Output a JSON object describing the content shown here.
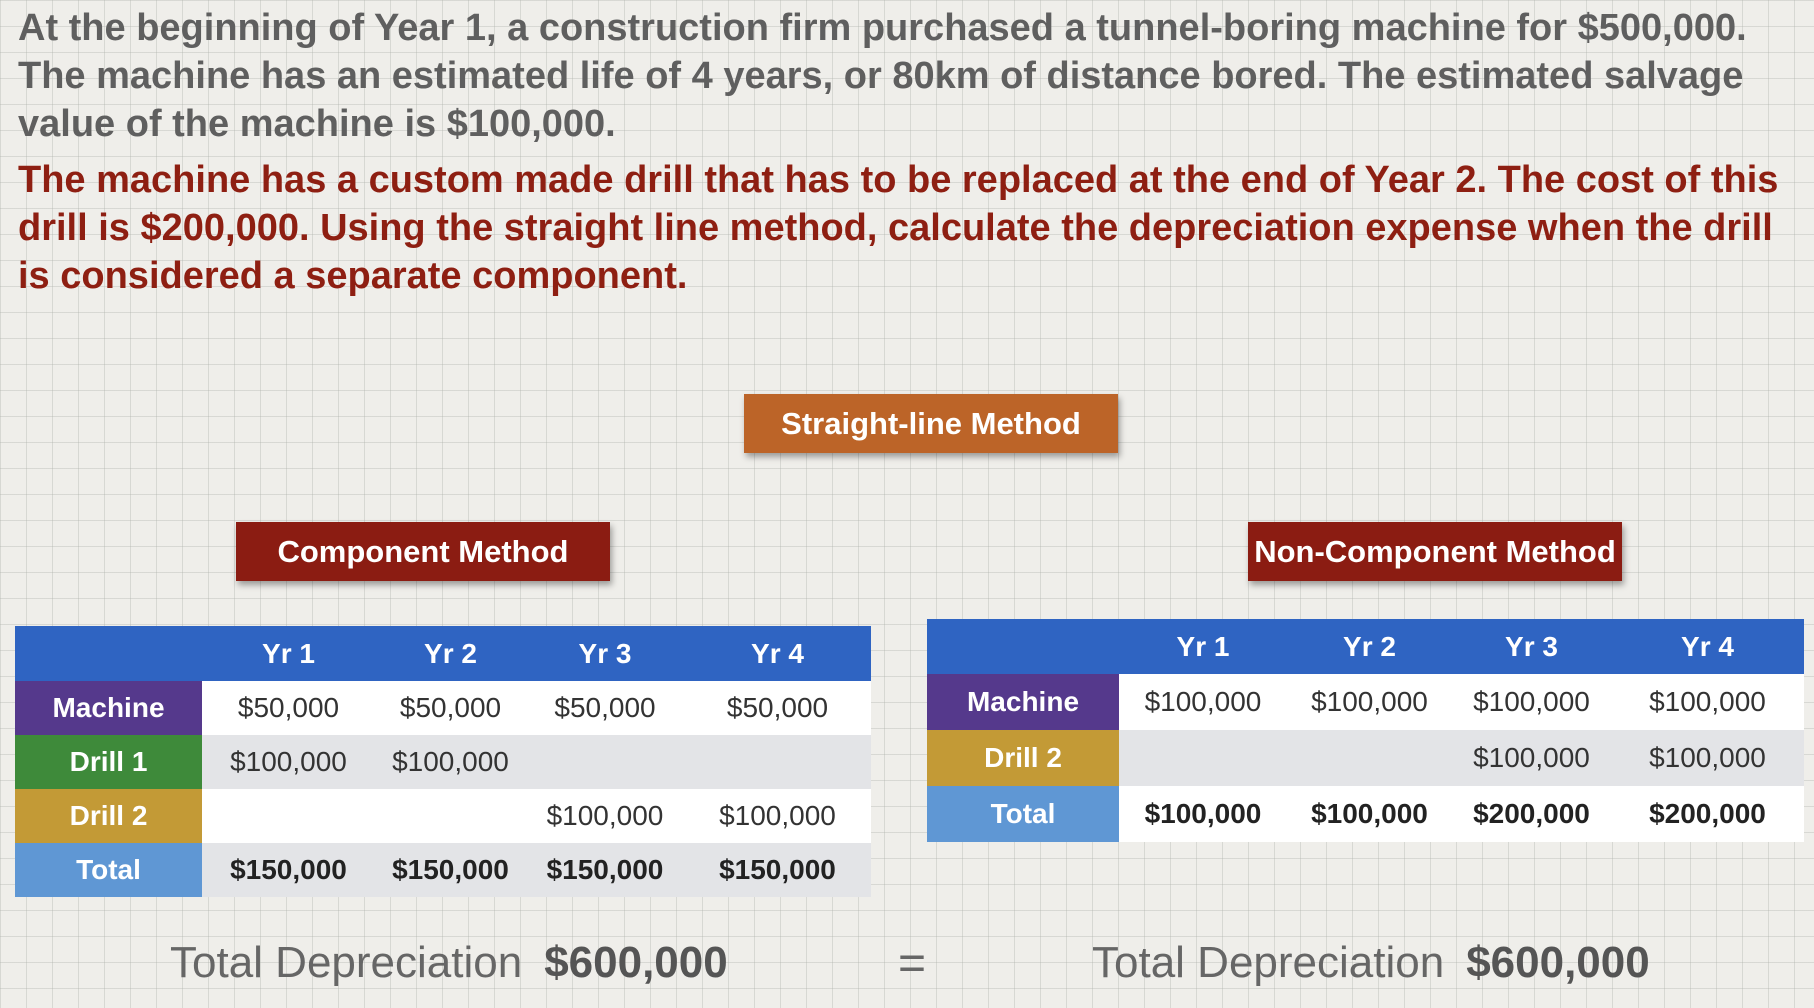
{
  "intro_text": "At the beginning of Year 1, a construction firm purchased a tunnel-boring machine for $500,000.  The machine has an estimated life of 4 years, or 80km of distance bored.  The estimated salvage value of the machine is $100,000.",
  "question_text": "The machine has a custom made drill that has to be replaced at the end of Year 2. The cost of this drill is $200,000.  Using the straight line method, calculate the depreciation expense when the drill is considered a separate component.",
  "tags": {
    "straight_line": "Straight-line Method",
    "component": "Component Method",
    "non_component": "Non-Component Method"
  },
  "component_table": {
    "headers": [
      "",
      "Yr 1",
      "Yr 2",
      "Yr 3",
      "Yr 4"
    ],
    "rows": [
      {
        "label": "Machine",
        "values": [
          "$50,000",
          "$50,000",
          "$50,000",
          "$50,000"
        ]
      },
      {
        "label": "Drill 1",
        "values": [
          "$100,000",
          "$100,000",
          "",
          ""
        ]
      },
      {
        "label": "Drill 2",
        "values": [
          "",
          "",
          "$100,000",
          "$100,000"
        ]
      },
      {
        "label": "Total",
        "values": [
          "$150,000",
          "$150,000",
          "$150,000",
          "$150,000"
        ]
      }
    ]
  },
  "noncomponent_table": {
    "headers": [
      "",
      "Yr 1",
      "Yr 2",
      "Yr 3",
      "Yr 4"
    ],
    "rows": [
      {
        "label": "Machine",
        "values": [
          "$100,000",
          "$100,000",
          "$100,000",
          "$100,000"
        ]
      },
      {
        "label": "Drill 2",
        "values": [
          "",
          "",
          "$100,000",
          "$100,000"
        ]
      },
      {
        "label": "Total",
        "values": [
          "$100,000",
          "$100,000",
          "$200,000",
          "$200,000"
        ]
      }
    ]
  },
  "totals": {
    "left_label": "Total Depreciation",
    "left_value": "$600,000",
    "equals": "=",
    "right_label": "Total Depreciation",
    "right_value": "$600,000"
  },
  "colors": {
    "header_blue": "#2f64c2",
    "machine_purple": "#55398c",
    "drill1_green": "#3e8a3a",
    "drill2_gold": "#c39a36",
    "total_blue": "#5f97d4",
    "tag_orange": "#bc6428",
    "tag_red": "#8b1c12",
    "question_red": "#8e1f12"
  }
}
